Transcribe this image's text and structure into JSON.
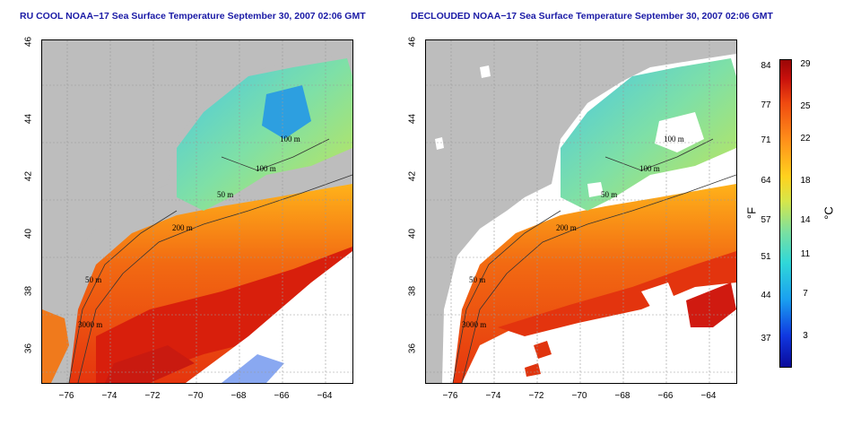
{
  "left_panel": {
    "title": "RU COOL NOAA−17 Sea Surface Temperature September 30, 2007 02:06 GMT",
    "contour_labels": [
      "100 m",
      "100 m",
      "50 m",
      "200 m",
      "50 m",
      "3000 m"
    ]
  },
  "right_panel": {
    "title": "DECLOUDED NOAA−17 Sea Surface Temperature September 30, 2007 02:06 GMT",
    "contour_labels": [
      "100 m",
      "100 m",
      "50 m",
      "200 m",
      "50 m",
      "3000 m"
    ]
  },
  "lat_ticks": [
    "36",
    "38",
    "40",
    "42",
    "44",
    "46"
  ],
  "lon_ticks": [
    "−76",
    "−74",
    "−72",
    "−70",
    "−68",
    "−66",
    "−64"
  ],
  "colorbar": {
    "fahrenheit_ticks": [
      "84",
      "77",
      "71",
      "64",
      "57",
      "51",
      "44",
      "37"
    ],
    "celsius_ticks": [
      "29",
      "25",
      "22",
      "18",
      "14",
      "11",
      "7",
      "3"
    ],
    "fahrenheit_unit": "°F",
    "celsius_unit": "°C"
  },
  "colors": {
    "title": "#1a1aa6",
    "land": "#bdbdbd",
    "warm": "#e8501a",
    "cool": "#6fd6a6"
  }
}
